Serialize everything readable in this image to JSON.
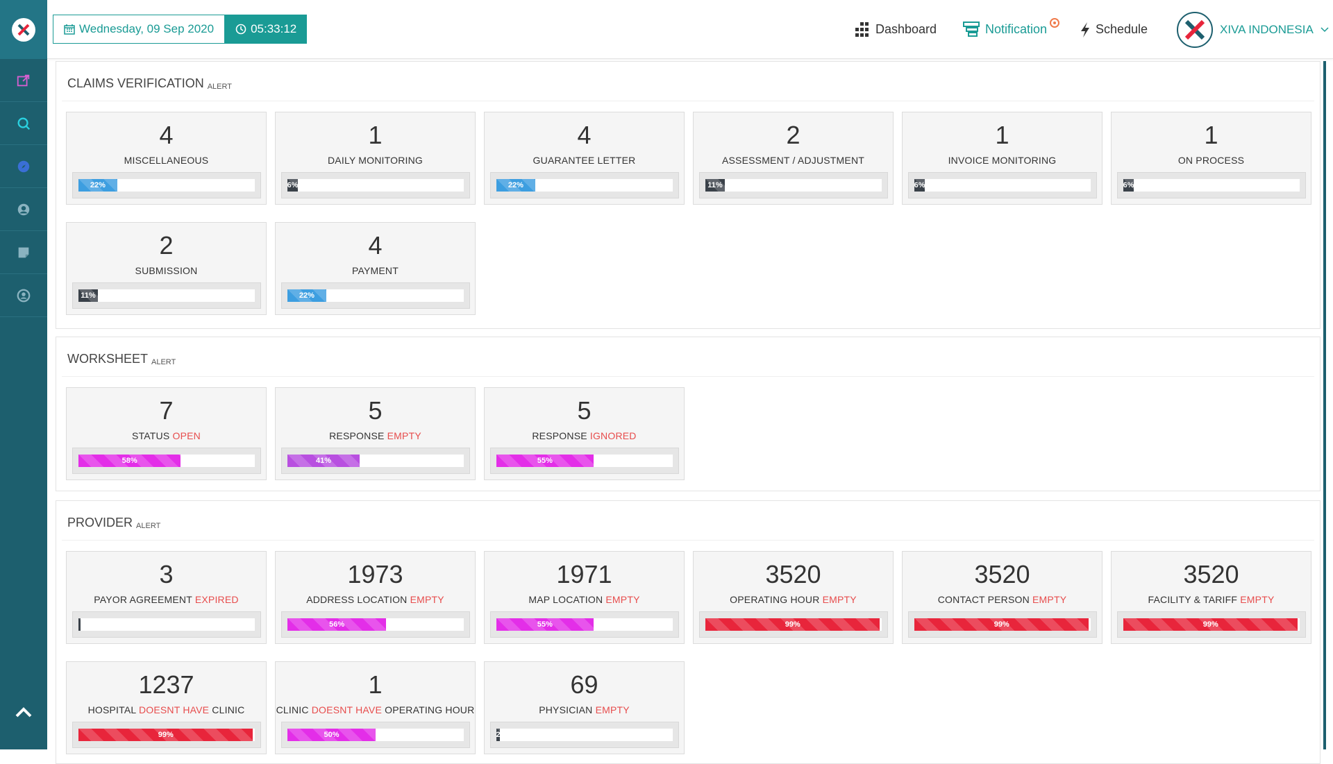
{
  "header": {
    "date": "Wednesday, 09 Sep 2020",
    "time": "05:33:12",
    "menu": {
      "dashboard": "Dashboard",
      "notification": "Notification",
      "schedule": "Schedule"
    },
    "company": "XIVA INDONESIA"
  },
  "colors": {
    "accent": "#1a9b95",
    "sidebar": "#1d5f6e",
    "alert_red": "#e74c4c"
  },
  "sidebar": {
    "icons": [
      "external-link-icon",
      "search-icon",
      "compass-icon",
      "user-circle-icon",
      "note-icon",
      "account-icon"
    ]
  },
  "claims": {
    "title": "CLAIMS VERIFICATION",
    "tag": "ALERT",
    "cards": [
      {
        "num": "4",
        "label": "MISCELLANEOUS",
        "alert": "",
        "pct": 22,
        "pct_text": "22%",
        "color": "blue"
      },
      {
        "num": "1",
        "label": "DAILY MONITORING",
        "alert": "",
        "pct": 6,
        "pct_text": "6%",
        "color": "dark"
      },
      {
        "num": "4",
        "label": "GUARANTEE LETTER",
        "alert": "",
        "pct": 22,
        "pct_text": "22%",
        "color": "blue"
      },
      {
        "num": "2",
        "label": "ASSESSMENT / ADJUSTMENT",
        "alert": "",
        "pct": 11,
        "pct_text": "11%",
        "color": "dark"
      },
      {
        "num": "1",
        "label": "INVOICE MONITORING",
        "alert": "",
        "pct": 6,
        "pct_text": "6%",
        "color": "dark"
      },
      {
        "num": "1",
        "label": "ON PROCESS",
        "alert": "",
        "pct": 6,
        "pct_text": "6%",
        "color": "dark"
      },
      {
        "num": "2",
        "label": "SUBMISSION",
        "alert": "",
        "pct": 11,
        "pct_text": "11%",
        "color": "dark"
      },
      {
        "num": "4",
        "label": "PAYMENT",
        "alert": "",
        "pct": 22,
        "pct_text": "22%",
        "color": "blue"
      }
    ]
  },
  "worksheet": {
    "title": "WORKSHEET",
    "tag": "ALERT",
    "cards": [
      {
        "num": "7",
        "label": "STATUS ",
        "alert": "OPEN",
        "pct": 58,
        "pct_text": "58%",
        "color": "pink"
      },
      {
        "num": "5",
        "label": "RESPONSE ",
        "alert": "EMPTY",
        "pct": 41,
        "pct_text": "41%",
        "color": "purple"
      },
      {
        "num": "5",
        "label": "RESPONSE ",
        "alert": "IGNORED",
        "pct": 55,
        "pct_text": "55%",
        "color": "pink"
      }
    ]
  },
  "provider": {
    "title": "PROVIDER",
    "tag": "ALERT",
    "cards": [
      {
        "num": "3",
        "label": "PAYOR AGREEMENT ",
        "alert": "EXPIRED",
        "pct": 1,
        "pct_text": "",
        "color": "dark"
      },
      {
        "num": "1973",
        "label": "ADDRESS LOCATION ",
        "alert": "EMPTY",
        "pct": 56,
        "pct_text": "56%",
        "color": "pink"
      },
      {
        "num": "1971",
        "label": "MAP LOCATION ",
        "alert": "EMPTY",
        "pct": 55,
        "pct_text": "55%",
        "color": "pink"
      },
      {
        "num": "3520",
        "label": "OPERATING HOUR ",
        "alert": "EMPTY",
        "pct": 99,
        "pct_text": "99%",
        "color": "red"
      },
      {
        "num": "3520",
        "label": "CONTACT PERSON ",
        "alert": "EMPTY",
        "pct": 99,
        "pct_text": "99%",
        "color": "red"
      },
      {
        "num": "3520",
        "label": "FACILITY & TARIFF ",
        "alert": "EMPTY",
        "pct": 99,
        "pct_text": "99%",
        "color": "red"
      },
      {
        "num": "1237",
        "label": "HOSPITAL ",
        "alert": "DOESNT HAVE",
        "suffix": " CLINIC",
        "pct": 99,
        "pct_text": "99%",
        "color": "red"
      },
      {
        "num": "1",
        "label": "CLINIC ",
        "alert": "DOESNT HAVE",
        "suffix": " OPERATING HOUR",
        "pct": 50,
        "pct_text": "50%",
        "color": "pink"
      },
      {
        "num": "69",
        "label": "PHYSICIAN ",
        "alert": "EMPTY",
        "pct": 2,
        "pct_text": "2",
        "color": "dark"
      }
    ]
  }
}
